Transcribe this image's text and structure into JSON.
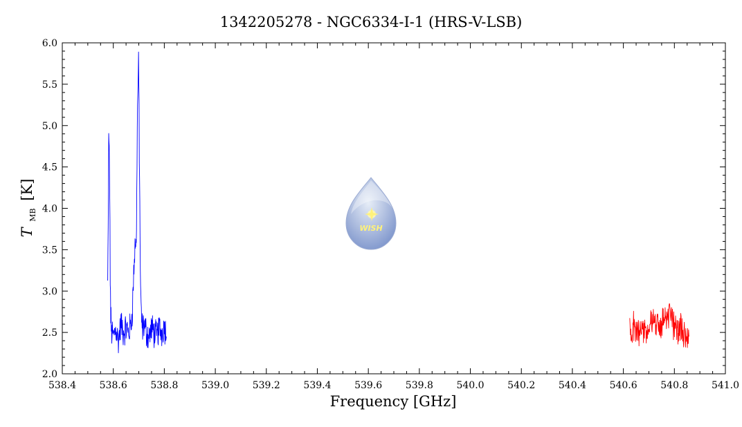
{
  "chart_data": {
    "type": "line",
    "title": "1342205278 - NGC6334-I-1 (HRS-V-LSB)",
    "xlabel": "Frequency [GHz]",
    "ylabel": {
      "main": "T",
      "sub": "MB",
      "unit": "[K]"
    },
    "xlim": [
      538.4,
      541.0
    ],
    "ylim": [
      2.0,
      6.0
    ],
    "x_ticks": [
      "538.4",
      "538.6",
      "538.8",
      "539.0",
      "539.2",
      "539.4",
      "539.6",
      "539.8",
      "540.0",
      "540.2",
      "540.4",
      "540.6",
      "540.8",
      "541.0"
    ],
    "y_ticks": [
      "2.0",
      "2.5",
      "3.0",
      "3.5",
      "4.0",
      "4.5",
      "5.0",
      "5.5",
      "6.0"
    ],
    "grid": false,
    "series": [
      {
        "color": "#0000ff",
        "x": [
          538.578,
          538.58,
          538.582,
          538.584,
          538.586,
          538.588,
          538.59,
          538.592,
          538.594,
          538.6,
          538.61,
          538.62,
          538.63,
          538.64,
          538.65,
          538.66,
          538.67,
          538.675,
          538.68,
          538.685,
          538.688,
          538.69,
          538.692,
          538.694,
          538.696,
          538.698,
          538.699,
          538.7,
          538.701,
          538.702,
          538.704,
          538.706,
          538.708,
          538.71,
          538.712,
          538.715,
          538.72,
          538.73,
          538.74,
          538.75,
          538.76,
          538.77,
          538.78,
          538.79,
          538.8,
          538.808
        ],
        "y": [
          3.1,
          3.7,
          4.8,
          4.7,
          4.2,
          3.2,
          2.7,
          2.55,
          2.5,
          2.45,
          2.55,
          2.4,
          2.6,
          2.5,
          2.55,
          2.5,
          2.6,
          2.8,
          3.2,
          3.55,
          3.6,
          3.5,
          4.2,
          5.0,
          5.35,
          5.65,
          5.7,
          5.5,
          5.2,
          4.7,
          4.0,
          3.3,
          2.85,
          2.7,
          2.6,
          2.55,
          2.6,
          2.5,
          2.45,
          2.55,
          2.5,
          2.45,
          2.55,
          2.5,
          2.6,
          2.45
        ]
      },
      {
        "color": "#ff0000",
        "x": [
          540.625,
          540.64,
          540.655,
          540.67,
          540.685,
          540.7,
          540.715,
          540.73,
          540.745,
          540.76,
          540.775,
          540.785,
          540.8,
          540.815,
          540.83,
          540.845,
          540.857
        ],
        "y": [
          2.5,
          2.55,
          2.5,
          2.6,
          2.5,
          2.55,
          2.65,
          2.6,
          2.55,
          2.7,
          2.75,
          2.65,
          2.6,
          2.55,
          2.5,
          2.5,
          2.45
        ]
      }
    ]
  },
  "logo": {
    "text": "WISH",
    "colors": {
      "drop_top": "#e6edf7",
      "drop_bottom": "#7d95cc",
      "star": "#fff27a"
    }
  }
}
